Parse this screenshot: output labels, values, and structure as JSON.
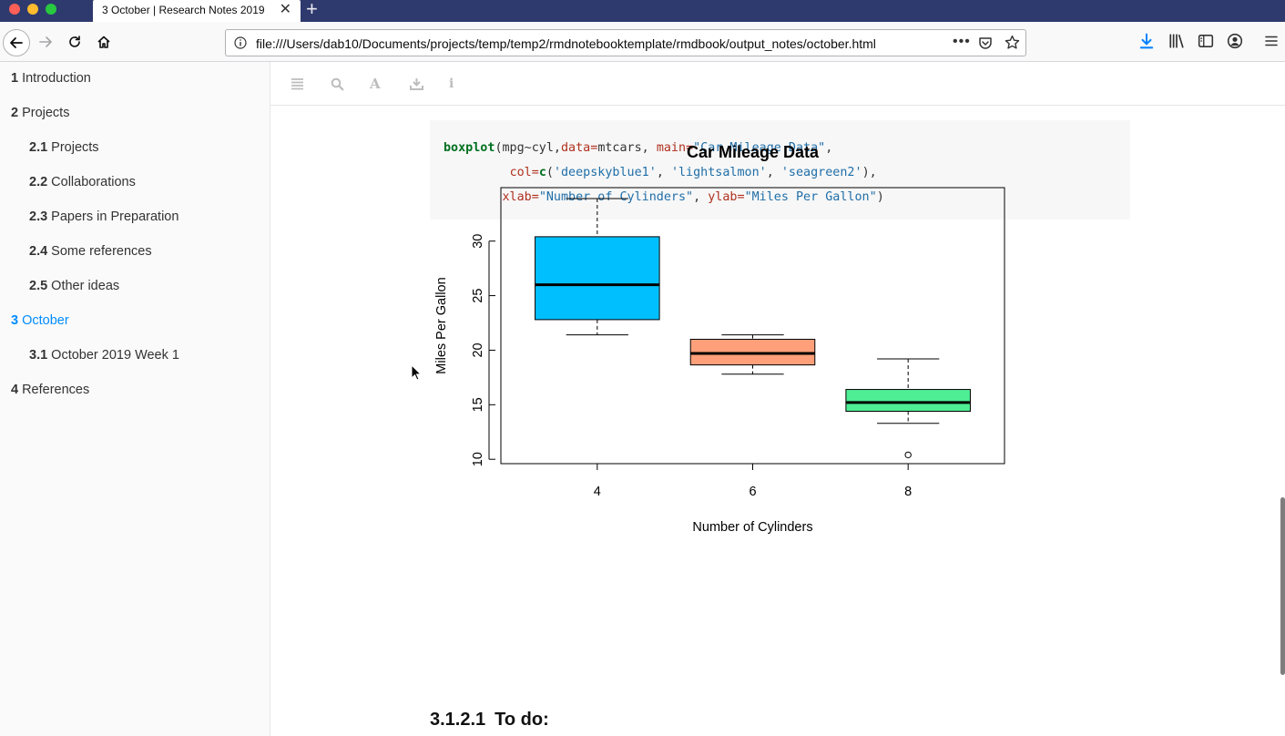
{
  "browser": {
    "tab_title": "3 October | Research Notes 2019",
    "url": "file:///Users/dab10/Documents/projects/temp/temp2/rmdnotebooktemplate/rmdbook/output_notes/october.html",
    "accent_color": "#0a84ff"
  },
  "toc": [
    {
      "num": "1",
      "label": "Introduction",
      "level": 1,
      "active": false
    },
    {
      "num": "2",
      "label": "Projects",
      "level": 1,
      "active": false
    },
    {
      "num": "2.1",
      "label": "Projects",
      "level": 2,
      "active": false
    },
    {
      "num": "2.2",
      "label": "Collaborations",
      "level": 2,
      "active": false
    },
    {
      "num": "2.3",
      "label": "Papers in Preparation",
      "level": 2,
      "active": false
    },
    {
      "num": "2.4",
      "label": "Some references",
      "level": 2,
      "active": false
    },
    {
      "num": "2.5",
      "label": "Other ideas",
      "level": 2,
      "active": false
    },
    {
      "num": "3",
      "label": "October",
      "level": 1,
      "active": true
    },
    {
      "num": "3.1",
      "label": "October 2019 Week 1",
      "level": 2,
      "active": false
    },
    {
      "num": "4",
      "label": "References",
      "level": 1,
      "active": false
    }
  ],
  "code": {
    "line1": {
      "fn": "boxplot",
      "a": "(mpg~cyl,",
      "b": "data=",
      "c": "mtcars, ",
      "d": "main=",
      "e": "\"Car Mileage Data\"",
      "f": ","
    },
    "line2": {
      "indent": "         ",
      "a": "col=",
      "b": "c",
      "c": "(",
      "d": "'deepskyblue1'",
      "e": ", ",
      "f": "'lightsalmon'",
      "g": ", ",
      "h": "'seagreen2'",
      "i": "),"
    },
    "line3": {
      "indent": "        ",
      "a": "xlab=",
      "b": "\"Number of Cylinders\"",
      "c": ", ",
      "d": "ylab=",
      "e": "\"Miles Per Gallon\"",
      "f": ")"
    }
  },
  "chart_data": {
    "type": "boxplot",
    "title": "Car Mileage Data",
    "xlabel": "Number of Cylinders",
    "ylabel": "Miles Per Gallon",
    "categories": [
      "4",
      "6",
      "8"
    ],
    "ylim": [
      9.6,
      34.9
    ],
    "yticks": [
      10,
      15,
      20,
      25,
      30
    ],
    "boxes": [
      {
        "category": "4",
        "whisker_low": 21.4,
        "q1": 22.8,
        "median": 26.0,
        "q3": 30.4,
        "whisker_high": 33.9,
        "outliers": [],
        "color": "#00bfff"
      },
      {
        "category": "6",
        "whisker_low": 17.8,
        "q1": 18.65,
        "median": 19.7,
        "q3": 21.0,
        "whisker_high": 21.4,
        "outliers": [],
        "color": "#ffa07a"
      },
      {
        "category": "8",
        "whisker_low": 13.3,
        "q1": 14.4,
        "median": 15.2,
        "q3": 16.4,
        "whisker_high": 19.2,
        "outliers": [
          10.4
        ],
        "color": "#4eee94"
      }
    ]
  },
  "section": {
    "num": "3.1.2.1",
    "title": "To do:"
  }
}
